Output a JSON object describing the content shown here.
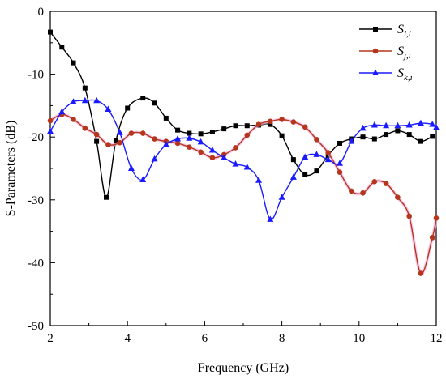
{
  "chart_data": {
    "type": "line",
    "title": "",
    "xlabel": "Frequency (GHz)",
    "ylabel": "S-Parameters (dB)",
    "xlim": [
      2,
      12
    ],
    "ylim": [
      -50,
      0
    ],
    "xticks": [
      2,
      4,
      6,
      8,
      10,
      12
    ],
    "yticks": [
      0,
      -10,
      -20,
      -30,
      -40,
      -50
    ],
    "grid": false,
    "legend_position": "top-right",
    "series": [
      {
        "name": "S_i,i",
        "legend_main": "S",
        "legend_sub": "i,i",
        "color": "#000000",
        "marker": "square",
        "x": [
          2.0,
          2.3,
          2.6,
          2.9,
          3.2,
          3.45,
          3.7,
          4.0,
          4.4,
          4.7,
          5.0,
          5.3,
          5.6,
          5.9,
          6.2,
          6.5,
          6.8,
          7.1,
          7.4,
          7.7,
          8.0,
          8.3,
          8.6,
          8.9,
          9.2,
          9.5,
          9.8,
          10.1,
          10.4,
          10.7,
          11.0,
          11.3,
          11.6,
          11.9
        ],
        "y": [
          -3.3,
          -5.7,
          -8.2,
          -12.2,
          -20.7,
          -29.6,
          -20.6,
          -15.4,
          -13.8,
          -14.6,
          -17.0,
          -18.9,
          -19.4,
          -19.5,
          -19.2,
          -18.7,
          -18.2,
          -18.2,
          -18.1,
          -18.0,
          -19.8,
          -23.6,
          -26.0,
          -25.4,
          -22.9,
          -21.0,
          -20.3,
          -20.0,
          -20.3,
          -19.6,
          -19.0,
          -19.6,
          -20.7,
          -19.9
        ]
      },
      {
        "name": "S_j,i",
        "legend_main": "S",
        "legend_sub": "j,i",
        "color": "#b5361c",
        "marker": "circle",
        "x": [
          2.0,
          2.3,
          2.6,
          2.9,
          3.2,
          3.5,
          3.8,
          4.1,
          4.4,
          4.7,
          5.0,
          5.3,
          5.6,
          5.9,
          6.2,
          6.5,
          6.8,
          7.1,
          7.4,
          7.7,
          8.0,
          8.3,
          8.6,
          8.9,
          9.2,
          9.5,
          9.8,
          10.1,
          10.4,
          10.7,
          11.0,
          11.3,
          11.6,
          11.9,
          12.0
        ],
        "y": [
          -17.4,
          -16.4,
          -17.2,
          -18.6,
          -19.6,
          -21.2,
          -20.9,
          -19.4,
          -19.4,
          -20.3,
          -20.7,
          -21.0,
          -21.6,
          -22.4,
          -23.3,
          -22.8,
          -21.7,
          -19.7,
          -18.0,
          -17.5,
          -17.2,
          -17.6,
          -18.4,
          -20.4,
          -22.5,
          -25.6,
          -28.6,
          -28.9,
          -27.1,
          -27.4,
          -29.6,
          -32.6,
          -41.7,
          -36.0,
          -32.9
        ]
      },
      {
        "name": "S_k,i",
        "legend_main": "S",
        "legend_sub": "k,i",
        "color": "#1a1aff",
        "marker": "triangle",
        "x": [
          2.0,
          2.3,
          2.6,
          2.9,
          3.2,
          3.5,
          3.8,
          4.1,
          4.4,
          4.7,
          5.0,
          5.3,
          5.6,
          5.9,
          6.2,
          6.5,
          6.8,
          7.1,
          7.4,
          7.7,
          8.0,
          8.3,
          8.6,
          8.9,
          9.2,
          9.5,
          9.8,
          10.1,
          10.4,
          10.7,
          11.0,
          11.3,
          11.6,
          11.9,
          12.0
        ],
        "y": [
          -19.1,
          -16.0,
          -14.4,
          -14.2,
          -14.2,
          -15.6,
          -19.3,
          -25.0,
          -26.8,
          -23.5,
          -21.2,
          -20.3,
          -20.2,
          -20.8,
          -22.1,
          -23.3,
          -24.3,
          -24.8,
          -26.9,
          -33.1,
          -29.6,
          -26.4,
          -23.2,
          -22.8,
          -23.6,
          -24.2,
          -20.7,
          -18.6,
          -18.1,
          -18.2,
          -18.2,
          -18.1,
          -17.8,
          -18.0,
          -18.5
        ]
      }
    ]
  }
}
